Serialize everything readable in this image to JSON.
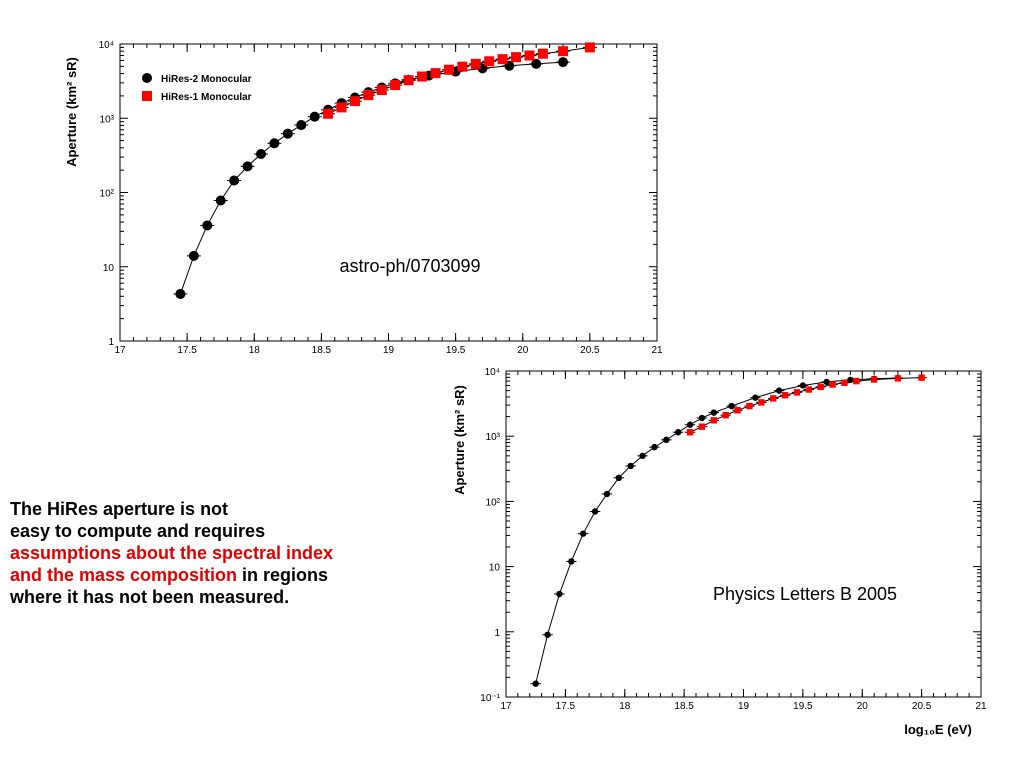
{
  "slide_text": {
    "line1": "The HiRes aperture is not",
    "line2": "easy to compute and requires",
    "line3_red": "assumptions about the spectral index",
    "line4_red": "and the mass composition",
    "line4_black": " in regions",
    "line5": "where it has not been measured."
  },
  "colors": {
    "red_text": "#e00000",
    "hires1": "#ff0000",
    "hires2": "#000000"
  },
  "chart_data": [
    {
      "type": "scatter",
      "title": "",
      "annotation": "astro-ph/0703099",
      "xlabel": "",
      "ylabel": "Aperture (km² sR)",
      "xlim": [
        17,
        21
      ],
      "ylim": [
        1,
        10000
      ],
      "yscale": "log",
      "xticks": [
        "17",
        "17.5",
        "18",
        "18.5",
        "19",
        "19.5",
        "20",
        "20.5",
        "21"
      ],
      "yticks": [
        "1",
        "10",
        "10²",
        "10³",
        "10⁴"
      ],
      "legend": "top-left",
      "grid": false,
      "series": [
        {
          "name": "HiRes-2 Monocular",
          "marker": "circle",
          "color": "#000000",
          "x": [
            17.45,
            17.55,
            17.65,
            17.75,
            17.85,
            17.95,
            18.05,
            18.15,
            18.25,
            18.35,
            18.45,
            18.55,
            18.65,
            18.75,
            18.85,
            18.95,
            19.05,
            19.15,
            19.3,
            19.5,
            19.7,
            19.9,
            20.1,
            20.3
          ],
          "y": [
            4.3,
            14,
            36,
            78,
            145,
            225,
            330,
            460,
            620,
            810,
            1050,
            1300,
            1600,
            1900,
            2250,
            2600,
            2950,
            3300,
            3750,
            4250,
            4700,
            5100,
            5400,
            5700
          ],
          "fit_line": true
        },
        {
          "name": "HiRes-1 Monocular",
          "marker": "square",
          "color": "#ff0000",
          "x": [
            18.55,
            18.65,
            18.75,
            18.85,
            18.95,
            19.05,
            19.15,
            19.25,
            19.35,
            19.45,
            19.55,
            19.65,
            19.75,
            19.85,
            19.95,
            20.05,
            20.15,
            20.3,
            20.5
          ],
          "y": [
            1150,
            1400,
            1700,
            2050,
            2400,
            2800,
            3250,
            3650,
            4050,
            4500,
            4950,
            5400,
            5850,
            6250,
            6650,
            7000,
            7400,
            8000,
            9000
          ],
          "fit_line": true
        }
      ]
    },
    {
      "type": "scatter",
      "title": "",
      "annotation": "Physics Letters B 2005",
      "xlabel": "log₁₀E (eV)",
      "ylabel": "Aperture (km² sR)",
      "xlim": [
        17,
        21
      ],
      "ylim": [
        0.1,
        10000
      ],
      "yscale": "log",
      "xticks": [
        "17",
        "17.5",
        "18",
        "18.5",
        "19",
        "19.5",
        "20",
        "20.5",
        "21"
      ],
      "yticks": [
        "10⁻¹",
        "1",
        "10",
        "10²",
        "10³",
        "10⁴"
      ],
      "grid": false,
      "series": [
        {
          "name": "",
          "marker": "circle",
          "color": "#000000",
          "x": [
            17.25,
            17.35,
            17.45,
            17.55,
            17.65,
            17.75,
            17.85,
            17.95,
            18.05,
            18.15,
            18.25,
            18.35,
            18.45,
            18.55,
            18.65,
            18.75,
            18.9,
            19.1,
            19.3,
            19.5,
            19.7,
            19.9,
            20.1,
            20.3
          ],
          "y": [
            0.16,
            0.9,
            3.8,
            12,
            32,
            70,
            130,
            230,
            350,
            500,
            680,
            880,
            1150,
            1500,
            1900,
            2300,
            2900,
            3900,
            5000,
            6000,
            6800,
            7300,
            7600,
            7800
          ],
          "line": true
        },
        {
          "name": "",
          "marker": "square",
          "color": "#ff0000",
          "x": [
            18.55,
            18.65,
            18.75,
            18.85,
            18.95,
            19.05,
            19.15,
            19.25,
            19.35,
            19.45,
            19.55,
            19.65,
            19.75,
            19.85,
            19.95,
            20.1,
            20.3,
            20.5
          ],
          "y": [
            1150,
            1400,
            1750,
            2100,
            2500,
            2900,
            3300,
            3800,
            4250,
            4700,
            5200,
            5700,
            6200,
            6600,
            7000,
            7400,
            7700,
            7900
          ],
          "line": true
        }
      ]
    }
  ]
}
